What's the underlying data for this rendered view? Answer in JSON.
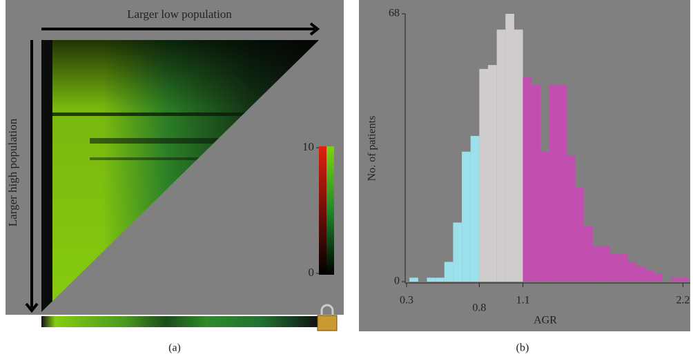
{
  "chart_data": [
    {
      "type": "heatmap",
      "xlabel": "Larger low population",
      "ylabel": "Larger high population",
      "colorbar": {
        "lim": [
          0,
          10
        ],
        "ticks": [
          0,
          10
        ]
      },
      "caption": "(a)"
    },
    {
      "type": "histogram",
      "xlabel": "AGR",
      "ylabel": "No. of patients",
      "caption": "(b)",
      "bins": [
        0.32,
        0.38,
        0.44,
        0.5,
        0.56,
        0.62,
        0.68,
        0.74,
        0.8,
        0.86,
        0.92,
        0.98,
        1.04,
        1.1,
        1.16,
        1.22,
        1.28,
        1.34,
        1.4,
        1.46,
        1.52,
        1.58,
        1.64,
        1.7,
        1.76,
        1.82,
        1.88,
        1.94,
        2.0,
        2.06,
        2.12,
        2.18,
        2.24
      ],
      "counts": [
        1,
        0,
        1,
        1,
        5,
        15,
        33,
        37,
        54,
        55,
        64,
        68,
        64,
        52,
        50,
        33,
        50,
        50,
        32,
        24,
        14,
        9,
        9,
        7,
        7,
        5,
        4,
        3,
        2,
        0,
        1,
        1
      ],
      "colors": [
        "#9be0ea",
        "#9be0ea",
        "#9be0ea",
        "#9be0ea",
        "#9be0ea",
        "#9be0ea",
        "#9be0ea",
        "#9be0ea",
        "#d0cccc",
        "#d0cccc",
        "#d0cccc",
        "#d0cccc",
        "#d0cccc",
        "#c24fb0",
        "#c24fb0",
        "#c24fb0",
        "#c24fb0",
        "#c24fb0",
        "#c24fb0",
        "#c24fb0",
        "#c24fb0",
        "#c24fb0",
        "#c24fb0",
        "#c24fb0",
        "#c24fb0",
        "#c24fb0",
        "#c24fb0",
        "#c24fb0",
        "#c24fb0",
        "#c24fb0",
        "#c24fb0",
        "#c24fb0"
      ],
      "xlim": [
        0.3,
        2.25
      ],
      "ylim": [
        0,
        68
      ],
      "xticks": [
        0.3,
        0.8,
        1.1,
        2.2
      ],
      "yticks": [
        0,
        68
      ]
    }
  ]
}
